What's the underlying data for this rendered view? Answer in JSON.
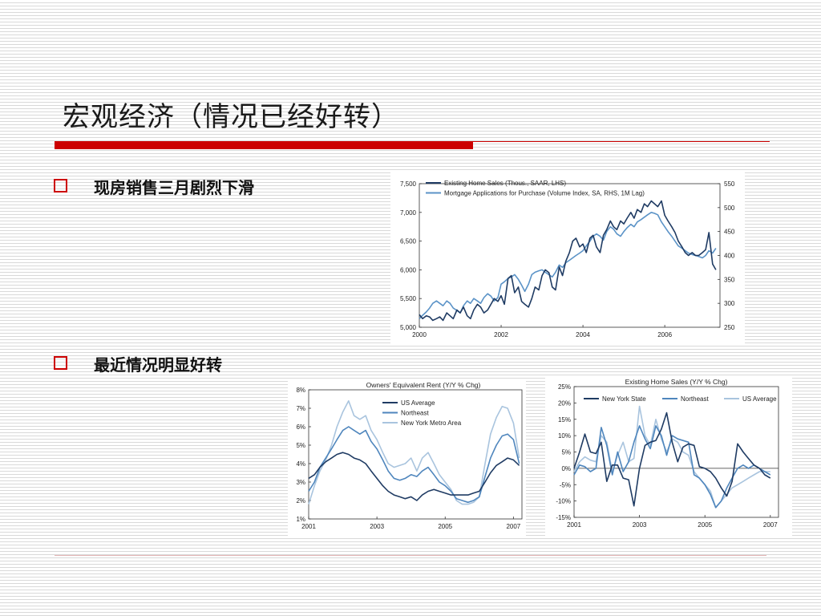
{
  "slide": {
    "title": "宏观经济（情况已经好转）",
    "bullet1": "现房销售三月剧烈下滑",
    "bullet2": "最近情况明显好转"
  },
  "chart_data": [
    {
      "type": "line",
      "title": "",
      "legend_placement": "top-left",
      "grid": false,
      "x": [
        2000.0,
        2000.08,
        2000.17,
        2000.25,
        2000.33,
        2000.42,
        2000.5,
        2000.58,
        2000.67,
        2000.75,
        2000.83,
        2000.92,
        2001.0,
        2001.08,
        2001.17,
        2001.25,
        2001.33,
        2001.42,
        2001.5,
        2001.58,
        2001.67,
        2001.75,
        2001.83,
        2001.92,
        2002.0,
        2002.08,
        2002.17,
        2002.25,
        2002.33,
        2002.42,
        2002.5,
        2002.58,
        2002.67,
        2002.75,
        2002.83,
        2002.92,
        2003.0,
        2003.08,
        2003.17,
        2003.25,
        2003.33,
        2003.42,
        2003.5,
        2003.58,
        2003.67,
        2003.75,
        2003.83,
        2003.92,
        2004.0,
        2004.08,
        2004.17,
        2004.25,
        2004.33,
        2004.42,
        2004.5,
        2004.58,
        2004.67,
        2004.75,
        2004.83,
        2004.92,
        2005.0,
        2005.08,
        2005.17,
        2005.25,
        2005.33,
        2005.42,
        2005.5,
        2005.58,
        2005.67,
        2005.75,
        2005.83,
        2005.92,
        2006.0,
        2006.08,
        2006.17,
        2006.25,
        2006.33,
        2006.42,
        2006.5,
        2006.58,
        2006.67,
        2006.75,
        2006.83,
        2006.92,
        2007.0,
        2007.08,
        2007.17,
        2007.25
      ],
      "xticks": [
        2000,
        2002,
        2004,
        2006
      ],
      "xlim": [
        2000,
        2007.35
      ],
      "y_left": {
        "ticks": [
          "5,000",
          "5,500",
          "6,000",
          "6,500",
          "7,000",
          "7,500"
        ],
        "min": 5000,
        "max": 7500
      },
      "y_right": {
        "ticks": [
          "250",
          "300",
          "350",
          "400",
          "450",
          "500",
          "550"
        ],
        "min": 250,
        "max": 550
      },
      "series": [
        {
          "name": "Existing Home Sales (Thous., SAAR, LHS)",
          "axis": "left",
          "color": "#1f3b63",
          "values": [
            5220,
            5150,
            5200,
            5180,
            5120,
            5150,
            5180,
            5120,
            5250,
            5200,
            5150,
            5300,
            5250,
            5350,
            5200,
            5150,
            5300,
            5400,
            5350,
            5250,
            5300,
            5400,
            5500,
            5450,
            5550,
            5400,
            5850,
            5900,
            5600,
            5700,
            5450,
            5400,
            5350,
            5500,
            5700,
            5650,
            5900,
            6000,
            5950,
            5700,
            5650,
            6050,
            5900,
            6150,
            6300,
            6500,
            6550,
            6400,
            6450,
            6300,
            6550,
            6600,
            6400,
            6300,
            6600,
            6700,
            6850,
            6750,
            6700,
            6850,
            6800,
            6900,
            7000,
            6900,
            7050,
            7000,
            7150,
            7100,
            7200,
            7150,
            7100,
            7200,
            6950,
            6850,
            6750,
            6650,
            6500,
            6400,
            6300,
            6250,
            6300,
            6250,
            6250,
            6300,
            6350,
            6650,
            6100,
            6000
          ]
        },
        {
          "name": "Mortgage Applications for Purchase (Volume Index, SA, RHS, 1M Lag)",
          "axis": "right",
          "color": "#5b93c7",
          "values": [
            268,
            275,
            282,
            290,
            300,
            305,
            300,
            295,
            305,
            300,
            290,
            285,
            280,
            295,
            305,
            300,
            310,
            305,
            300,
            312,
            320,
            315,
            305,
            312,
            340,
            345,
            352,
            355,
            360,
            350,
            338,
            325,
            340,
            360,
            365,
            368,
            370,
            365,
            360,
            355,
            365,
            380,
            375,
            385,
            390,
            395,
            400,
            405,
            410,
            420,
            430,
            440,
            445,
            440,
            432,
            450,
            460,
            455,
            445,
            440,
            450,
            458,
            465,
            460,
            470,
            475,
            480,
            485,
            490,
            488,
            485,
            470,
            460,
            450,
            440,
            430,
            420,
            415,
            410,
            405,
            402,
            400,
            398,
            395,
            400,
            410,
            405,
            415
          ]
        }
      ]
    },
    {
      "type": "line",
      "title": "Owners' Equivalent Rent (Y/Y % Chg)",
      "legend_placement": "top-right",
      "grid": false,
      "x": [
        2001.0,
        2001.17,
        2001.33,
        2001.5,
        2001.67,
        2001.83,
        2002.0,
        2002.17,
        2002.33,
        2002.5,
        2002.67,
        2002.83,
        2003.0,
        2003.17,
        2003.33,
        2003.5,
        2003.67,
        2003.83,
        2004.0,
        2004.17,
        2004.33,
        2004.5,
        2004.67,
        2004.83,
        2005.0,
        2005.17,
        2005.33,
        2005.5,
        2005.67,
        2005.83,
        2006.0,
        2006.17,
        2006.33,
        2006.5,
        2006.67,
        2006.83,
        2007.0,
        2007.17
      ],
      "xticks": [
        2001,
        2003,
        2005,
        2007
      ],
      "xlim": [
        2001,
        2007.25
      ],
      "y": {
        "ticks": [
          "1%",
          "2%",
          "3%",
          "4%",
          "5%",
          "6%",
          "7%",
          "8%"
        ],
        "min": 1,
        "max": 8
      },
      "series": [
        {
          "name": "US Average",
          "color": "#1f3b63",
          "values": [
            3.2,
            3.4,
            3.8,
            4.1,
            4.3,
            4.5,
            4.6,
            4.5,
            4.3,
            4.2,
            4.0,
            3.6,
            3.2,
            2.8,
            2.5,
            2.3,
            2.2,
            2.1,
            2.2,
            2.0,
            2.3,
            2.5,
            2.6,
            2.5,
            2.4,
            2.3,
            2.3,
            2.3,
            2.3,
            2.4,
            2.5,
            3.0,
            3.5,
            3.9,
            4.1,
            4.3,
            4.2,
            3.9
          ]
        },
        {
          "name": "Northeast",
          "color": "#4f86bd",
          "values": [
            2.5,
            3.0,
            3.8,
            4.3,
            4.8,
            5.3,
            5.8,
            6.0,
            5.8,
            5.6,
            5.8,
            5.2,
            4.8,
            4.2,
            3.6,
            3.2,
            3.1,
            3.2,
            3.4,
            3.3,
            3.6,
            3.8,
            3.4,
            3.0,
            2.8,
            2.5,
            2.1,
            2.0,
            1.9,
            2.0,
            2.2,
            3.3,
            4.3,
            5.0,
            5.5,
            5.6,
            5.3,
            4.0
          ]
        },
        {
          "name": "New York Metro Area",
          "color": "#a9c4de",
          "values": [
            1.8,
            2.8,
            3.6,
            4.2,
            5.0,
            6.0,
            6.8,
            7.4,
            6.6,
            6.4,
            6.6,
            5.8,
            5.3,
            4.6,
            4.0,
            3.8,
            3.9,
            4.0,
            4.3,
            3.6,
            4.3,
            4.6,
            4.0,
            3.4,
            3.0,
            2.6,
            2.0,
            1.8,
            1.8,
            1.9,
            2.2,
            4.0,
            5.6,
            6.5,
            7.1,
            7.0,
            6.2,
            4.3
          ]
        }
      ]
    },
    {
      "type": "line",
      "title": "Existing Home Sales (Y/Y % Chg)",
      "legend_placement": "top",
      "grid": false,
      "x": [
        2001.0,
        2001.17,
        2001.33,
        2001.5,
        2001.67,
        2001.83,
        2002.0,
        2002.17,
        2002.33,
        2002.5,
        2002.67,
        2002.83,
        2003.0,
        2003.17,
        2003.33,
        2003.5,
        2003.67,
        2003.83,
        2004.0,
        2004.17,
        2004.33,
        2004.5,
        2004.67,
        2004.83,
        2005.0,
        2005.17,
        2005.33,
        2005.5,
        2005.67,
        2005.83,
        2006.0,
        2006.17,
        2006.33,
        2006.5,
        2006.67,
        2006.83,
        2007.0
      ],
      "xticks": [
        2001,
        2003,
        2005,
        2007
      ],
      "xlim": [
        2001,
        2007.25
      ],
      "y": {
        "ticks": [
          "-15%",
          "-10%",
          "-5%",
          "0%",
          "5%",
          "10%",
          "15%",
          "20%",
          "25%"
        ],
        "min": -15,
        "max": 25
      },
      "series": [
        {
          "name": "New York State",
          "color": "#1f3b63",
          "values": [
            0,
            5,
            10.5,
            5,
            4.5,
            8,
            -4,
            1,
            1,
            -3,
            -3.5,
            -11.5,
            0,
            7,
            8,
            8.5,
            12,
            17,
            8,
            2,
            6.5,
            7.5,
            7,
            0.5,
            0,
            -1,
            -3,
            -6,
            -8.5,
            -4,
            7.5,
            5,
            3,
            1,
            0,
            -2,
            -3
          ]
        },
        {
          "name": "Northeast",
          "color": "#4f86bd",
          "values": [
            -2,
            1,
            0.5,
            -1,
            0,
            12.5,
            7,
            -2,
            5,
            -1,
            2,
            8,
            13,
            9,
            6,
            13,
            10,
            4,
            10,
            9,
            8.5,
            8,
            -2,
            -3,
            -5,
            -8,
            -12,
            -10,
            -6,
            -3,
            0,
            1,
            0,
            1,
            0,
            -1,
            -2
          ]
        },
        {
          "name": "US Average",
          "color": "#a9c4de",
          "values": [
            -1,
            2,
            3.5,
            2.5,
            2,
            10,
            8,
            -1,
            4,
            8,
            2,
            3,
            19,
            10,
            7,
            15,
            9,
            5,
            9,
            8,
            5,
            4,
            -1,
            -3,
            -5,
            -7,
            -12,
            -10,
            -8,
            -6,
            -5,
            -4,
            -3,
            -2,
            -1,
            -1,
            -1
          ]
        }
      ]
    }
  ]
}
